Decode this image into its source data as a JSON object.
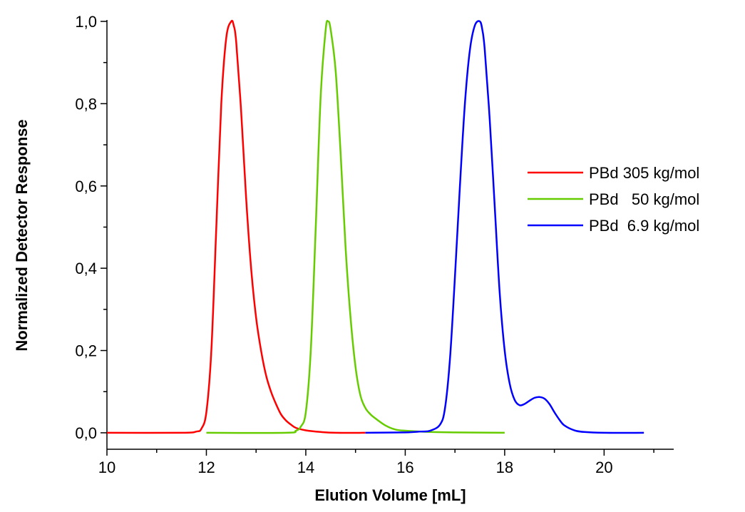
{
  "chart_data": {
    "type": "line",
    "title": "",
    "xlabel": "Elution Volume [mL]",
    "ylabel": "Normalized Detector Response",
    "xlim": [
      10,
      21.4
    ],
    "ylim": [
      -0.04,
      1.0
    ],
    "x_ticks": [
      10,
      12,
      14,
      16,
      18,
      20
    ],
    "x_tick_labels": [
      "10",
      "12",
      "14",
      "16",
      "18",
      "20"
    ],
    "y_ticks": [
      0.0,
      0.2,
      0.4,
      0.6,
      0.8,
      1.0
    ],
    "y_tick_labels": [
      "0,0",
      "0,2",
      "0,4",
      "0,6",
      "0,8",
      "1,0"
    ],
    "grid": false,
    "legend_position": "right",
    "series": [
      {
        "name": "PBd 305 kg/mol",
        "color": "#ff0000",
        "points": [
          [
            10.0,
            0.0
          ],
          [
            11.5,
            0.0
          ],
          [
            11.8,
            0.003
          ],
          [
            11.9,
            0.01
          ],
          [
            12.0,
            0.05
          ],
          [
            12.1,
            0.2
          ],
          [
            12.2,
            0.5
          ],
          [
            12.3,
            0.8
          ],
          [
            12.4,
            0.96
          ],
          [
            12.5,
            1.0
          ],
          [
            12.55,
            0.99
          ],
          [
            12.6,
            0.95
          ],
          [
            12.7,
            0.78
          ],
          [
            12.8,
            0.57
          ],
          [
            12.9,
            0.4
          ],
          [
            13.0,
            0.28
          ],
          [
            13.1,
            0.2
          ],
          [
            13.2,
            0.14
          ],
          [
            13.3,
            0.1
          ],
          [
            13.4,
            0.07
          ],
          [
            13.5,
            0.045
          ],
          [
            13.6,
            0.03
          ],
          [
            13.7,
            0.02
          ],
          [
            13.8,
            0.012
          ],
          [
            14.0,
            0.006
          ],
          [
            14.3,
            0.002
          ],
          [
            14.6,
            0.0
          ],
          [
            15.2,
            0.0
          ]
        ]
      },
      {
        "name": "PBd   50 kg/mol",
        "color": "#66cc00",
        "points": [
          [
            12.0,
            0.0
          ],
          [
            13.6,
            0.0
          ],
          [
            13.8,
            0.005
          ],
          [
            13.9,
            0.015
          ],
          [
            14.0,
            0.05
          ],
          [
            14.1,
            0.2
          ],
          [
            14.2,
            0.5
          ],
          [
            14.3,
            0.82
          ],
          [
            14.4,
            0.98
          ],
          [
            14.45,
            1.0
          ],
          [
            14.5,
            0.98
          ],
          [
            14.6,
            0.88
          ],
          [
            14.7,
            0.68
          ],
          [
            14.8,
            0.45
          ],
          [
            14.9,
            0.28
          ],
          [
            15.0,
            0.16
          ],
          [
            15.1,
            0.09
          ],
          [
            15.2,
            0.06
          ],
          [
            15.3,
            0.045
          ],
          [
            15.4,
            0.035
          ],
          [
            15.6,
            0.018
          ],
          [
            15.8,
            0.008
          ],
          [
            16.0,
            0.005
          ],
          [
            16.5,
            0.002
          ],
          [
            17.0,
            0.001
          ],
          [
            18.0,
            0.0
          ]
        ]
      },
      {
        "name": "PBd  6.9 kg/mol",
        "color": "#0000ff",
        "points": [
          [
            15.2,
            0.0
          ],
          [
            16.0,
            0.001
          ],
          [
            16.3,
            0.003
          ],
          [
            16.5,
            0.005
          ],
          [
            16.7,
            0.02
          ],
          [
            16.8,
            0.06
          ],
          [
            16.9,
            0.18
          ],
          [
            17.0,
            0.38
          ],
          [
            17.1,
            0.6
          ],
          [
            17.2,
            0.8
          ],
          [
            17.3,
            0.93
          ],
          [
            17.4,
            0.99
          ],
          [
            17.5,
            1.0
          ],
          [
            17.55,
            0.98
          ],
          [
            17.6,
            0.93
          ],
          [
            17.7,
            0.76
          ],
          [
            17.8,
            0.55
          ],
          [
            17.9,
            0.34
          ],
          [
            18.0,
            0.2
          ],
          [
            18.1,
            0.12
          ],
          [
            18.2,
            0.08
          ],
          [
            18.3,
            0.067
          ],
          [
            18.4,
            0.07
          ],
          [
            18.5,
            0.078
          ],
          [
            18.6,
            0.085
          ],
          [
            18.7,
            0.087
          ],
          [
            18.8,
            0.083
          ],
          [
            18.9,
            0.07
          ],
          [
            19.0,
            0.05
          ],
          [
            19.1,
            0.032
          ],
          [
            19.2,
            0.018
          ],
          [
            19.4,
            0.006
          ],
          [
            19.6,
            0.002
          ],
          [
            20.0,
            0.0
          ],
          [
            20.8,
            0.0
          ]
        ]
      }
    ]
  }
}
